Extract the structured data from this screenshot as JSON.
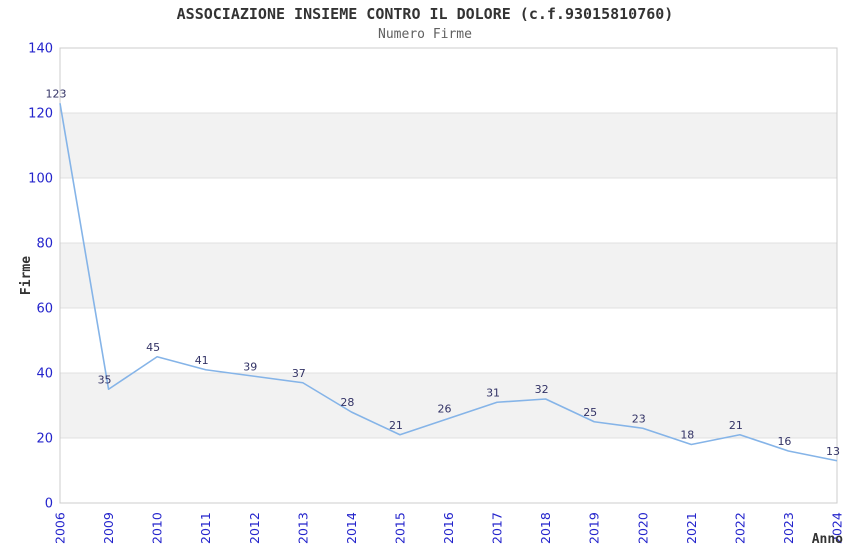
{
  "chart_data": {
    "type": "line",
    "title": "ASSOCIAZIONE INSIEME CONTRO IL DOLORE (c.f.93015810760)",
    "subtitle": "Numero Firme",
    "categories": [
      "2006",
      "2009",
      "2010",
      "2011",
      "2012",
      "2013",
      "2014",
      "2015",
      "2016",
      "2017",
      "2018",
      "2019",
      "2020",
      "2021",
      "2022",
      "2023",
      "2024"
    ],
    "values": [
      123,
      35,
      45,
      41,
      39,
      37,
      28,
      21,
      26,
      31,
      32,
      25,
      23,
      18,
      21,
      16,
      13
    ],
    "xlabel": "Anno",
    "ylabel": "Firme",
    "ylim": [
      0,
      140
    ],
    "ytick_step": 20,
    "yticks": [
      0,
      20,
      40,
      60,
      80,
      100,
      120,
      140
    ],
    "grid": "horizontal-bands",
    "legend": "none",
    "data_labels_shown": true,
    "colors": {
      "line": "#85b4e8",
      "data_label": "#333366",
      "tick_label": "#2424cc",
      "axis_title": "#333333",
      "band": "#f2f2f2",
      "gridline": "#e0e0e0",
      "plot_border": "#cccccc",
      "background": "#ffffff"
    }
  }
}
